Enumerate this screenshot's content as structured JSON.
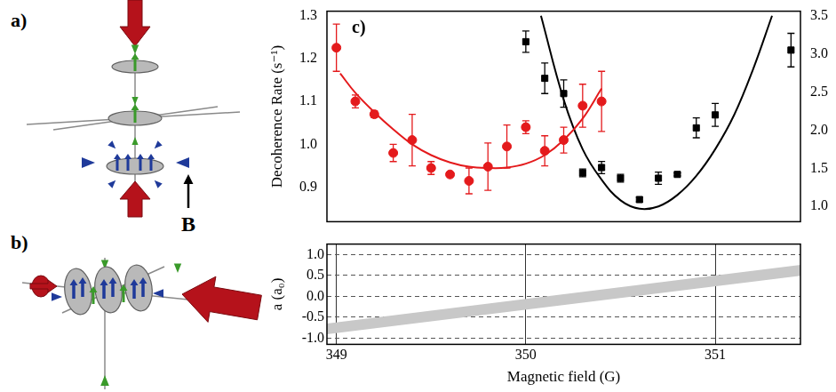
{
  "diagram": {
    "panel_a": "a)",
    "panel_b": "b)",
    "field": "B"
  },
  "chart_data": [
    {
      "type": "scatter",
      "annotation": "c)",
      "ylabel": "Decoherence Rate (s⁻¹)",
      "xlim": [
        348.95,
        351.45
      ],
      "ylim": [
        0.82,
        1.31
      ],
      "yticks": [
        0.9,
        {
          "value": 1,
          "label": "1.0"
        },
        1.1,
        1.2,
        1.3
      ],
      "y2lim": [
        0.8,
        3.56
      ],
      "y2ticks": [
        {
          "value": 1,
          "label": "1.0"
        },
        1.5,
        {
          "value": 2,
          "label": "2.0"
        },
        2.5,
        {
          "value": 3,
          "label": "3.0"
        },
        3.5
      ],
      "tick_labels": "y",
      "grid": false,
      "series": [
        {
          "type": "scatter",
          "color": "#e41a1c",
          "marker": "circle",
          "x": [
            349.0,
            349.1,
            349.2,
            349.3,
            349.4,
            349.5,
            349.6,
            349.7,
            349.8,
            349.9,
            350.0,
            350.1,
            350.2,
            350.3,
            350.4
          ],
          "values": [
            1.225,
            1.1,
            1.07,
            0.98,
            1.01,
            0.945,
            0.93,
            0.915,
            0.948,
            0.995,
            1.04,
            0.985,
            1.01,
            1.09,
            1.1
          ],
          "errors": [
            0.055,
            0.015,
            0.008,
            0.02,
            0.06,
            0.015,
            0.005,
            0.03,
            0.055,
            0.05,
            0.015,
            0.035,
            0.03,
            0.05,
            0.07
          ]
        },
        {
          "type": "line",
          "color": "#e41a1c",
          "line_style": "solid",
          "x": [
            349.02,
            349.1,
            349.2,
            349.3,
            349.4,
            349.5,
            349.6,
            349.7,
            349.8,
            349.9,
            350.0,
            350.1,
            350.2,
            350.3,
            350.4
          ],
          "values": [
            1.165,
            1.12,
            1.075,
            1.035,
            1.0,
            0.975,
            0.958,
            0.948,
            0.945,
            0.946,
            0.955,
            0.975,
            1.01,
            1.06,
            1.13
          ]
        },
        {
          "type": "scatter",
          "color": "#000000",
          "marker": "square",
          "axis": "y2",
          "x": [
            350.0,
            350.1,
            350.2,
            350.3,
            350.4,
            350.5,
            350.6,
            350.7,
            350.8,
            350.9,
            351.0,
            351.4
          ],
          "values": [
            3.16,
            2.68,
            2.48,
            1.44,
            1.51,
            1.37,
            1.09,
            1.37,
            1.42,
            2.03,
            2.2,
            3.05
          ],
          "errors": [
            0.14,
            0.2,
            0.18,
            0.05,
            0.08,
            0.05,
            0.03,
            0.08,
            0.02,
            0.13,
            0.15,
            0.22
          ]
        },
        {
          "type": "line",
          "color": "#000000",
          "line_style": "solid",
          "axis": "y2",
          "x": [
            350.08,
            350.2,
            350.3,
            350.4,
            350.5,
            350.6,
            350.7,
            350.8,
            350.9,
            351.0,
            351.1,
            351.2,
            351.3
          ],
          "values": [
            3.5,
            2.4,
            1.75,
            1.35,
            1.08,
            0.97,
            1.0,
            1.15,
            1.4,
            1.75,
            2.2,
            2.8,
            3.5
          ]
        }
      ]
    },
    {
      "type": "line",
      "xlabel": "Magnetic field (G)",
      "ylabel": "a (a₀)",
      "xlim": [
        348.95,
        351.45
      ],
      "xticks": [
        349,
        350,
        351
      ],
      "ylim": [
        -1.15,
        1.25
      ],
      "yticks": [
        {
          "value": -1,
          "label": "-1.0"
        },
        -0.5,
        {
          "value": 0,
          "label": "0.0"
        },
        0.5,
        {
          "value": 1,
          "label": "1.0"
        }
      ],
      "grid": true,
      "series": [
        {
          "color": "#404040",
          "line_style": "solid",
          "x": [
            348.95,
            351.45
          ],
          "values": [
            -0.78,
            0.62
          ],
          "errors": [
            0.13,
            0.13
          ]
        }
      ]
    }
  ]
}
